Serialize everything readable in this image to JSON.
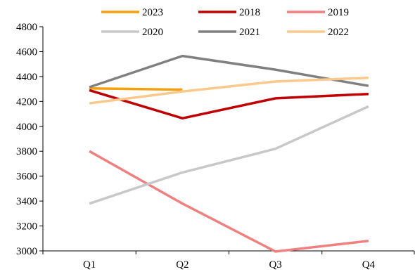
{
  "chart_data": {
    "type": "line",
    "title": "",
    "xlabel": "",
    "ylabel": "",
    "categories": [
      "Q1",
      "Q2",
      "Q3",
      "Q4"
    ],
    "ylim": [
      3000,
      4800
    ],
    "yticks": [
      3000,
      3200,
      3400,
      3600,
      3800,
      4000,
      4200,
      4400,
      4600,
      4800
    ],
    "grid": false,
    "legend_position": "top",
    "series": [
      {
        "name": "2023",
        "color": "#f5a00f",
        "values": [
          4305,
          4295,
          null,
          null
        ]
      },
      {
        "name": "2018",
        "color": "#c00000",
        "values": [
          4290,
          4065,
          4225,
          4260
        ]
      },
      {
        "name": "2019",
        "color": "#f08080",
        "values": [
          3800,
          3380,
          2995,
          3080
        ]
      },
      {
        "name": "2020",
        "color": "#c8c8c8",
        "values": [
          3380,
          3630,
          3820,
          4160
        ]
      },
      {
        "name": "2021",
        "color": "#808080",
        "values": [
          4315,
          4565,
          4455,
          4325
        ]
      },
      {
        "name": "2022",
        "color": "#fcc98c",
        "values": [
          4185,
          4280,
          4360,
          4390
        ]
      }
    ]
  }
}
